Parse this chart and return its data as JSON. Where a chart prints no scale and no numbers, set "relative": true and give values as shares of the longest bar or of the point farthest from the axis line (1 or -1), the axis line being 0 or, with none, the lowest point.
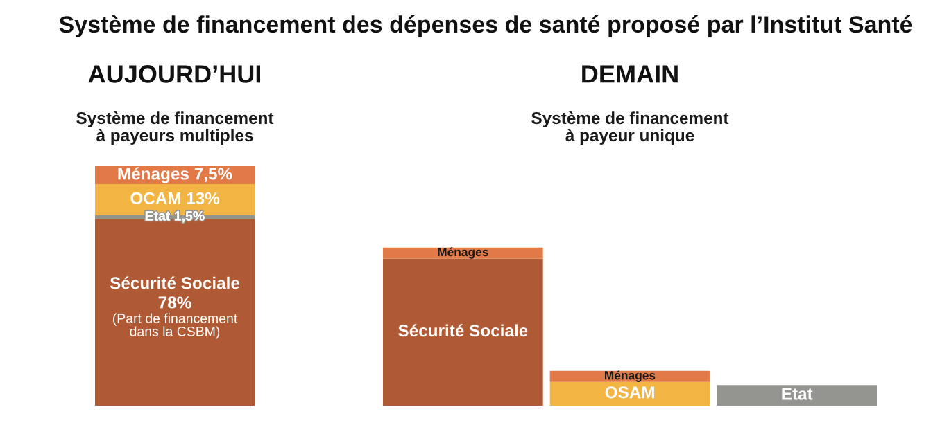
{
  "chart_data": [
    {
      "type": "other",
      "title": "Système de financement des dépenses de santé proposé par l’Institut Santé"
    },
    {
      "type": "bar",
      "title": "AUJOURD’HUI",
      "subtitle": "Système de financement\nà payeurs multiples",
      "stacked": true,
      "categories": [
        null
      ],
      "series": [
        {
          "name": "Sécurité Sociale",
          "color": "#b05a35",
          "values": [
            78
          ],
          "value_labels": [
            "78%"
          ]
        },
        {
          "name": "Etat",
          "color": "#949491",
          "values": [
            1.5
          ],
          "value_labels": [
            "1,5%"
          ]
        },
        {
          "name": "OCAM",
          "color": "#f2b544",
          "values": [
            13
          ],
          "value_labels": [
            "13%"
          ]
        },
        {
          "name": "Ménages",
          "color": "#e27a47",
          "values": [
            7.5
          ],
          "value_labels": [
            "7,5%"
          ]
        }
      ],
      "annotations": [
        "(Part de financement\ndans la CSBM)"
      ]
    },
    {
      "type": "bar",
      "title": "DEMAIN",
      "subtitle": "Système de financement\nà payeur unique",
      "stacked": true,
      "relative": true,
      "categories": [
        null,
        null,
        null
      ],
      "series": [
        {
          "name": "Sécurité Sociale",
          "color": "#b05a35",
          "values": [
            0.93,
            null,
            null
          ]
        },
        {
          "name": "OSAM",
          "color": "#f2b544",
          "values": [
            null,
            0.15,
            null
          ]
        },
        {
          "name": "Etat",
          "color": "#949491",
          "values": [
            null,
            null,
            0.13
          ]
        },
        {
          "name": "Ménages",
          "color": "#e27a47",
          "values": [
            0.07,
            0.07,
            null
          ]
        }
      ]
    }
  ]
}
